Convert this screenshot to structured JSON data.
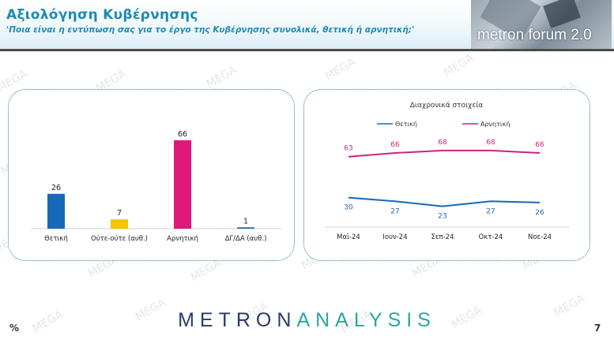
{
  "header": {
    "title": "Αξιολόγηση Κυβέρνησης",
    "subtitle": "'Ποια είναι η εντύπωση σας για το έργο της Κυβέρνησης συνολικά, θετική ή αρνητική;'",
    "logo_text": "metron forum 2.0"
  },
  "watermark": "MEGA",
  "footer": {
    "brand_part1": "METRON",
    "brand_part2": "ANALYSIS",
    "unit": "%",
    "page": "7"
  },
  "colors": {
    "thetiki": "#1669b6",
    "oute": "#f5c400",
    "arnitiki": "#e0187b",
    "dk": "#1669b6"
  },
  "chart_data": [
    {
      "type": "bar",
      "categories": [
        "Θετική",
        "Ούτε-ούτε (αυθ.)",
        "Αρνητική",
        "ΔΓ/ΔΑ (αυθ.)"
      ],
      "values": [
        26,
        7,
        66,
        1
      ],
      "colors": [
        "#1669b6",
        "#f5c400",
        "#e0187b",
        "#1669b6"
      ],
      "ylim": [
        0,
        80
      ]
    },
    {
      "type": "line",
      "title": "Διαχρονικά στοιχεία",
      "categories": [
        "Μαϊ-24",
        "Ιουν-24",
        "Σεπ-24",
        "Οκτ-24",
        "Νοε-24"
      ],
      "series": [
        {
          "name": "Θετική",
          "values": [
            30,
            27,
            23,
            27,
            26
          ],
          "color": "#1669b6"
        },
        {
          "name": "Αρνητική",
          "values": [
            63,
            66,
            68,
            68,
            66
          ],
          "color": "#c8247f"
        }
      ],
      "ylim": [
        10,
        80
      ],
      "legend": "top"
    }
  ]
}
